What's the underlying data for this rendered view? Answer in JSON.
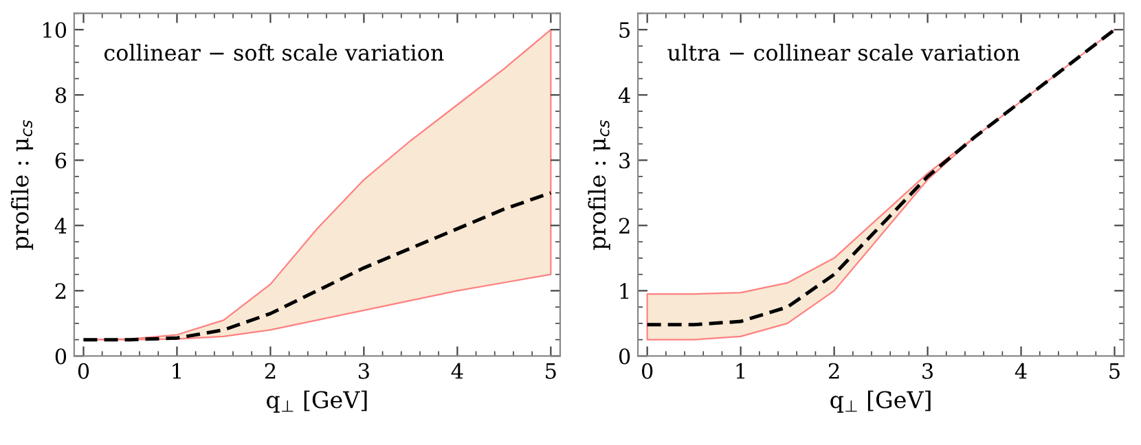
{
  "chart_data": [
    {
      "type": "line",
      "xlabel": "q$_{⊥}$ [GeV]",
      "ylabel": "profile : μ$_{cs}$",
      "annotations": [
        "collinear − soft scale variation"
      ],
      "xlim": [
        -0.1,
        5.1
      ],
      "ylim": [
        0,
        10.5
      ],
      "xticks": [
        0,
        1,
        2,
        3,
        4,
        5
      ],
      "yticks": [
        0,
        2,
        4,
        6,
        8,
        10
      ],
      "grid": false,
      "line_style": "dashed",
      "marker": "none",
      "series": [
        {
          "color": "#000000",
          "x": [
            0,
            0.5,
            1,
            1.5,
            2,
            2.5,
            3,
            3.5,
            4,
            4.5,
            5
          ],
          "values": [
            0.5,
            0.5,
            0.55,
            0.8,
            1.3,
            2.0,
            2.7,
            3.3,
            3.9,
            4.5,
            5.0
          ],
          "lower": [
            0.5,
            0.5,
            0.52,
            0.6,
            0.8,
            1.1,
            1.4,
            1.7,
            2.0,
            2.25,
            2.5
          ],
          "upper": [
            0.5,
            0.52,
            0.65,
            1.1,
            2.2,
            3.9,
            5.4,
            6.6,
            7.7,
            8.8,
            10.0
          ]
        }
      ]
    },
    {
      "type": "line",
      "xlabel": "q$_{⊥}$ [GeV]",
      "ylabel": "profile : μ$_{cs}$",
      "annotations": [
        "ultra − collinear scale variation"
      ],
      "xlim": [
        -0.1,
        5.1
      ],
      "ylim": [
        0,
        5.25
      ],
      "xticks": [
        0,
        1,
        2,
        3,
        4,
        5
      ],
      "yticks": [
        0,
        1,
        2,
        3,
        4,
        5
      ],
      "grid": false,
      "line_style": "dashed",
      "marker": "none",
      "series": [
        {
          "color": "#000000",
          "x": [
            0,
            0.5,
            1,
            1.5,
            2,
            2.5,
            3,
            3.5,
            4,
            4.5,
            5
          ],
          "values": [
            0.48,
            0.48,
            0.53,
            0.75,
            1.25,
            2.0,
            2.75,
            3.35,
            3.9,
            4.45,
            5.0
          ],
          "lower": [
            0.25,
            0.25,
            0.3,
            0.5,
            1.0,
            1.85,
            2.7,
            3.35,
            3.9,
            4.45,
            5.0
          ],
          "upper": [
            0.95,
            0.95,
            0.97,
            1.12,
            1.5,
            2.15,
            2.8,
            3.35,
            3.9,
            4.45,
            5.0
          ]
        }
      ]
    }
  ]
}
